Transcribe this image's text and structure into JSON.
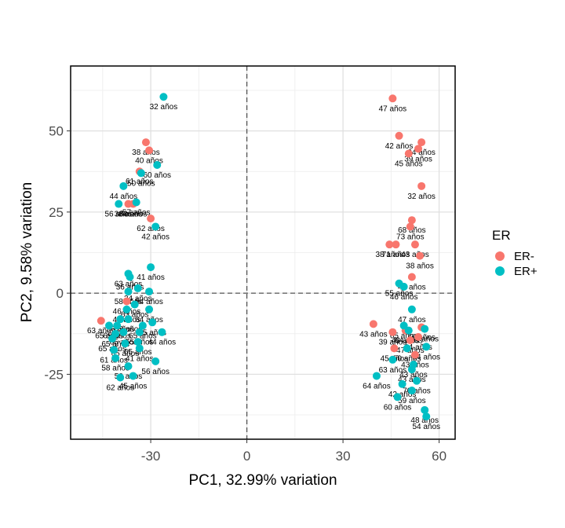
{
  "chart_data": {
    "type": "scatter",
    "xlabel": "PC1, 32.99% variation",
    "ylabel": "PC2, 9.58% variation",
    "xlim": [
      -55,
      65
    ],
    "ylim": [
      -45,
      70
    ],
    "xticks": [
      -30,
      0,
      30,
      60
    ],
    "yticks": [
      -25,
      0,
      25,
      50
    ],
    "xtick_labels": [
      "-30",
      "0",
      "30",
      "60"
    ],
    "ytick_labels": [
      "-25",
      "0",
      "25",
      "50"
    ],
    "grid": true,
    "reference_lines": {
      "x": 0,
      "y": 0,
      "style": "dashed"
    },
    "legend": {
      "title": "ER",
      "position": "right",
      "entries": [
        {
          "name": "ER-",
          "color": "#F8766D"
        },
        {
          "name": "ER+",
          "color": "#00BFC4"
        }
      ]
    },
    "series": [
      {
        "name": "ER-",
        "color": "#F8766D",
        "points": [
          {
            "x": -31.5,
            "y": 46.5,
            "label": "38 años"
          },
          {
            "x": -30.5,
            "y": 44.0,
            "label": "40 años"
          },
          {
            "x": -33.5,
            "y": 37.5,
            "label": "61 años"
          },
          {
            "x": -37.0,
            "y": 27.5,
            "label": "38 años"
          },
          {
            "x": -35.5,
            "y": 27.5,
            "label": "60 años"
          },
          {
            "x": -30.0,
            "y": 23.0,
            "label": "62 años"
          },
          {
            "x": -37.5,
            "y": -2.5,
            "label": "46 años"
          },
          {
            "x": -45.5,
            "y": -8.5,
            "label": "63 años"
          },
          {
            "x": 45.5,
            "y": 60.0,
            "label": "47 años"
          },
          {
            "x": 47.5,
            "y": 48.5,
            "label": "42 años"
          },
          {
            "x": 54.5,
            "y": 46.5,
            "label": "64 años"
          },
          {
            "x": 53.5,
            "y": 44.5,
            "label": "39 años"
          },
          {
            "x": 50.5,
            "y": 43.0,
            "label": "45 años"
          },
          {
            "x": 54.5,
            "y": 33.0,
            "label": "32 años"
          },
          {
            "x": 51.5,
            "y": 22.5,
            "label": "68 años"
          },
          {
            "x": 51.0,
            "y": 20.5,
            "label": "73 años"
          },
          {
            "x": 44.5,
            "y": 15.0,
            "label": "38 años"
          },
          {
            "x": 46.5,
            "y": 15.0,
            "label": "71 años"
          },
          {
            "x": 52.5,
            "y": 15.0,
            "label": "43 años"
          },
          {
            "x": 54.0,
            "y": 11.5,
            "label": "38 años"
          },
          {
            "x": 51.5,
            "y": 5.0,
            "label": "42 años"
          },
          {
            "x": 39.5,
            "y": -9.5,
            "label": "43 años"
          },
          {
            "x": 45.5,
            "y": -12.0,
            "label": "39 años"
          },
          {
            "x": 49.5,
            "y": -11.5,
            "label": "43 años"
          },
          {
            "x": 51.0,
            "y": -14.5,
            "label": "47 años"
          },
          {
            "x": 53.5,
            "y": -13.5,
            "label": "64 años"
          },
          {
            "x": 46.0,
            "y": -17.0,
            "label": "45 años"
          },
          {
            "x": 52.5,
            "y": -19.0,
            "label": "43 años"
          },
          {
            "x": 54.5,
            "y": -10.5,
            "label": "69 años"
          }
        ]
      },
      {
        "name": "ER+",
        "color": "#00BFC4",
        "points": [
          {
            "x": -26.0,
            "y": 60.5,
            "label": "32 años"
          },
          {
            "x": -28.0,
            "y": 39.5,
            "label": "60 años"
          },
          {
            "x": -33.0,
            "y": 37.0,
            "label": "50 años"
          },
          {
            "x": -38.5,
            "y": 33.0,
            "label": "44 años"
          },
          {
            "x": -40.0,
            "y": 27.5,
            "label": "56 años"
          },
          {
            "x": -34.5,
            "y": 28.0,
            "label": "57 años"
          },
          {
            "x": -28.5,
            "y": 20.5,
            "label": "42 años"
          },
          {
            "x": -37.0,
            "y": 6.0,
            "label": "63 años"
          },
          {
            "x": -30.0,
            "y": 8.0,
            "label": "41 años"
          },
          {
            "x": -36.5,
            "y": 5.0,
            "label": "36 años"
          },
          {
            "x": -34.0,
            "y": 1.5,
            "label": "34 años"
          },
          {
            "x": -37.0,
            "y": 0.5,
            "label": "58 años"
          },
          {
            "x": -30.5,
            "y": 0.5,
            "label": "54 años"
          },
          {
            "x": -35.0,
            "y": -3.5,
            "label": "63 años"
          },
          {
            "x": -37.5,
            "y": -5.0,
            "label": "40 años"
          },
          {
            "x": -30.5,
            "y": -5.0,
            "label": "64 años"
          },
          {
            "x": -39.5,
            "y": -8.0,
            "label": "56 años"
          },
          {
            "x": -37.0,
            "y": -8.0,
            "label": "63 años"
          },
          {
            "x": -43.0,
            "y": -10.0,
            "label": "65 años"
          },
          {
            "x": -40.5,
            "y": -10.0,
            "label": "65 años"
          },
          {
            "x": -32.5,
            "y": -10.0,
            "label": "65 años"
          },
          {
            "x": -29.5,
            "y": -9.0,
            "label": "65 años"
          },
          {
            "x": -41.0,
            "y": -12.5,
            "label": "65 años"
          },
          {
            "x": -38.5,
            "y": -12.0,
            "label": "65 años"
          },
          {
            "x": -33.5,
            "y": -12.0,
            "label": "65 años"
          },
          {
            "x": -26.5,
            "y": -12.0,
            "label": "44 años"
          },
          {
            "x": -42.0,
            "y": -14.0,
            "label": "65 años"
          },
          {
            "x": -38.0,
            "y": -15.5,
            "label": "65 años"
          },
          {
            "x": -34.0,
            "y": -15.0,
            "label": "65 años"
          },
          {
            "x": -41.5,
            "y": -17.5,
            "label": "61 años"
          },
          {
            "x": -33.5,
            "y": -17.0,
            "label": "41 años"
          },
          {
            "x": -41.0,
            "y": -20.0,
            "label": "58 años"
          },
          {
            "x": -28.5,
            "y": -21.0,
            "label": "56 años"
          },
          {
            "x": -37.0,
            "y": -22.5,
            "label": "50 años"
          },
          {
            "x": -39.5,
            "y": -26.0,
            "label": "62 años"
          },
          {
            "x": -35.5,
            "y": -25.5,
            "label": "45 años"
          },
          {
            "x": 47.5,
            "y": 3.0,
            "label": "55 años"
          },
          {
            "x": 49.0,
            "y": 2.0,
            "label": "46 años"
          },
          {
            "x": 51.5,
            "y": -5.0,
            "label": "47 años"
          },
          {
            "x": 49.0,
            "y": -10.0,
            "label": "65 años"
          },
          {
            "x": 50.5,
            "y": -11.5,
            "label": "64 años"
          },
          {
            "x": 55.5,
            "y": -11.0,
            "label": "69 años"
          },
          {
            "x": 56.0,
            "y": -16.5,
            "label": "64 años"
          },
          {
            "x": 50.0,
            "y": -17.0,
            "label": "50 años"
          },
          {
            "x": 45.5,
            "y": -20.5,
            "label": "63 años"
          },
          {
            "x": 52.0,
            "y": -22.0,
            "label": "43 años"
          },
          {
            "x": 51.5,
            "y": -23.5,
            "label": "43 años"
          },
          {
            "x": 40.5,
            "y": -25.5,
            "label": "64 años"
          },
          {
            "x": 48.5,
            "y": -28.0,
            "label": "42 años"
          },
          {
            "x": 51.5,
            "y": -30.0,
            "label": "59 años"
          },
          {
            "x": 47.0,
            "y": -32.0,
            "label": "60 años"
          },
          {
            "x": 55.5,
            "y": -36.0,
            "label": "48 años"
          },
          {
            "x": 53.0,
            "y": -27.0,
            "label": "70 años"
          },
          {
            "x": 56.0,
            "y": -38.0,
            "label": "54 años"
          }
        ]
      }
    ]
  }
}
